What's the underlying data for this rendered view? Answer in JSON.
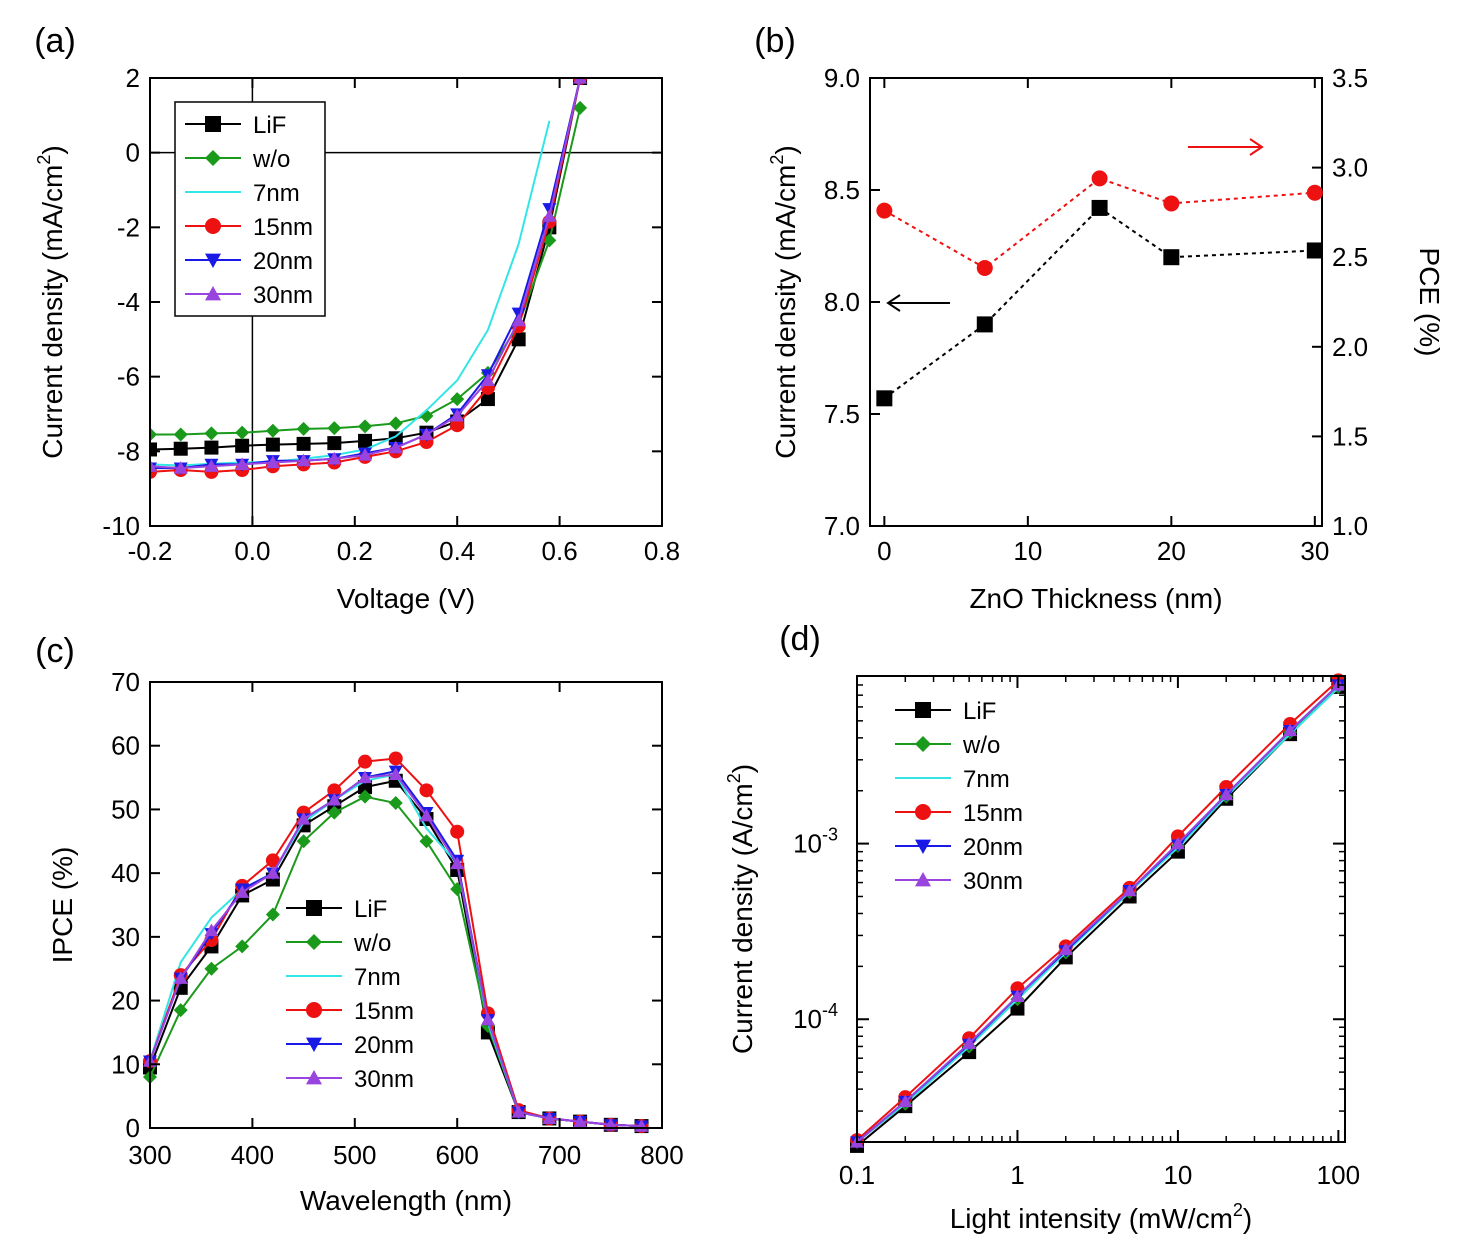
{
  "colors": {
    "LiF": "#000000",
    "w/o": "#1a9a1a",
    "7nm": "#33e5e5",
    "15nm": "#ee1111",
    "20nm": "#1a1ae6",
    "30nm": "#9a44e0"
  },
  "chart_data": [
    {
      "id": "a",
      "panel_label": "(a)",
      "type": "line",
      "xlabel": "Voltage (V)",
      "ylabel": "Current density (mA/cm",
      "ylabel_sup": "2",
      "ylabel_end": ")",
      "xlim": [
        -0.2,
        0.8
      ],
      "ylim": [
        -10,
        2
      ],
      "xticks": [
        -0.2,
        0.0,
        0.2,
        0.4,
        0.6,
        0.8
      ],
      "xtick_labels": [
        "-0.2",
        "0.0",
        "0.2",
        "0.4",
        "0.6",
        "0.8"
      ],
      "yticks": [
        -10,
        -8,
        -6,
        -4,
        -2,
        0,
        2
      ],
      "ytick_labels": [
        "-10",
        "-8",
        "-6",
        "-4",
        "-2",
        "0",
        "2"
      ],
      "legend_position": "top-left",
      "series": [
        {
          "name": "LiF",
          "marker": "square",
          "x": [
            -0.2,
            -0.14,
            -0.08,
            -0.02,
            0.04,
            0.1,
            0.16,
            0.22,
            0.28,
            0.34,
            0.4,
            0.46,
            0.52,
            0.58,
            0.64
          ],
          "y": [
            -7.95,
            -7.93,
            -7.9,
            -7.85,
            -7.82,
            -7.8,
            -7.78,
            -7.72,
            -7.65,
            -7.5,
            -7.2,
            -6.6,
            -5.0,
            -2.0,
            2.0
          ]
        },
        {
          "name": "w/o",
          "marker": "diamond",
          "x": [
            -0.2,
            -0.14,
            -0.08,
            -0.02,
            0.04,
            0.1,
            0.16,
            0.22,
            0.28,
            0.34,
            0.4,
            0.46,
            0.52,
            0.58,
            0.64
          ],
          "y": [
            -7.55,
            -7.55,
            -7.52,
            -7.5,
            -7.45,
            -7.4,
            -7.38,
            -7.33,
            -7.25,
            -7.05,
            -6.6,
            -5.9,
            -4.6,
            -2.35,
            1.2
          ]
        },
        {
          "name": "7nm",
          "marker": "bowtie",
          "x": [
            -0.2,
            -0.14,
            -0.08,
            -0.02,
            0.04,
            0.1,
            0.16,
            0.22,
            0.28,
            0.34,
            0.4,
            0.46,
            0.52,
            0.58
          ],
          "y": [
            -8.35,
            -8.38,
            -8.33,
            -8.3,
            -8.28,
            -8.2,
            -8.1,
            -7.95,
            -7.6,
            -6.9,
            -6.1,
            -4.75,
            -2.45,
            0.85
          ]
        },
        {
          "name": "15nm",
          "marker": "circle",
          "x": [
            -0.2,
            -0.14,
            -0.08,
            -0.02,
            0.04,
            0.1,
            0.16,
            0.22,
            0.28,
            0.34,
            0.4,
            0.46,
            0.52,
            0.58,
            0.64
          ],
          "y": [
            -8.55,
            -8.5,
            -8.55,
            -8.5,
            -8.4,
            -8.35,
            -8.3,
            -8.15,
            -8.0,
            -7.75,
            -7.3,
            -6.3,
            -4.65,
            -1.85,
            2.0
          ]
        },
        {
          "name": "20nm",
          "marker": "triangle-down",
          "x": [
            -0.2,
            -0.14,
            -0.08,
            -0.02,
            0.04,
            0.1,
            0.16,
            0.22,
            0.28,
            0.34,
            0.4,
            0.46,
            0.52,
            0.58,
            0.64
          ],
          "y": [
            -8.45,
            -8.45,
            -8.35,
            -8.35,
            -8.25,
            -8.25,
            -8.2,
            -8.05,
            -7.9,
            -7.55,
            -7.0,
            -5.95,
            -4.3,
            -1.5,
            2.0
          ]
        },
        {
          "name": "30nm",
          "marker": "triangle-up",
          "x": [
            -0.2,
            -0.14,
            -0.08,
            -0.02,
            0.04,
            0.1,
            0.16,
            0.22,
            0.28,
            0.34,
            0.4,
            0.46,
            0.52,
            0.58,
            0.64
          ],
          "y": [
            -8.4,
            -8.45,
            -8.4,
            -8.35,
            -8.3,
            -8.25,
            -8.2,
            -8.1,
            -7.9,
            -7.55,
            -7.05,
            -6.1,
            -4.5,
            -1.7,
            2.0
          ]
        }
      ]
    },
    {
      "id": "b",
      "panel_label": "(b)",
      "type": "scatter",
      "xlabel": "ZnO Thickness (nm)",
      "ylabel": "Current density (mA/cm",
      "ylabel_sup": "2",
      "ylabel_end": ")",
      "y2label": "PCE (%)",
      "xlim": [
        -1,
        30.5
      ],
      "ylim": [
        7.0,
        9.0
      ],
      "y2lim": [
        1.0,
        3.5
      ],
      "xticks": [
        0,
        10,
        20,
        30
      ],
      "xtick_labels": [
        "0",
        "10",
        "20",
        "30"
      ],
      "yticks": [
        7.0,
        7.5,
        8.0,
        8.5,
        9.0
      ],
      "ytick_labels": [
        "7.0",
        "7.5",
        "8.0",
        "8.5",
        "9.0"
      ],
      "y2ticks": [
        1.0,
        1.5,
        2.0,
        2.5,
        3.0,
        3.5
      ],
      "y2tick_labels": [
        "1.0",
        "1.5",
        "2.0",
        "2.5",
        "3.0",
        "3.5"
      ],
      "series": [
        {
          "name": "Current density",
          "axis": "left",
          "marker": "square",
          "color": "#000000",
          "x": [
            0,
            7,
            15,
            20,
            30
          ],
          "y": [
            7.57,
            7.9,
            8.42,
            8.2,
            8.23
          ]
        },
        {
          "name": "PCE",
          "axis": "right",
          "marker": "circle",
          "color": "#ee1111",
          "x": [
            0,
            7,
            15,
            20,
            30
          ],
          "y": [
            2.76,
            2.44,
            2.94,
            2.8,
            2.86
          ]
        }
      ],
      "annotations": [
        {
          "text": "arrow-left",
          "points_to": "left axis",
          "color": "#000000"
        },
        {
          "text": "arrow-right",
          "points_to": "right axis",
          "color": "#ee1111"
        }
      ]
    },
    {
      "id": "c",
      "panel_label": "(c)",
      "type": "line",
      "xlabel": "Wavelength (nm)",
      "ylabel": "IPCE (%)",
      "xlim": [
        300,
        800
      ],
      "ylim": [
        0,
        70
      ],
      "xticks": [
        300,
        400,
        500,
        600,
        700,
        800
      ],
      "xtick_labels": [
        "300",
        "400",
        "500",
        "600",
        "700",
        "800"
      ],
      "yticks": [
        0,
        10,
        20,
        30,
        40,
        50,
        60,
        70
      ],
      "ytick_labels": [
        "0",
        "10",
        "20",
        "30",
        "40",
        "50",
        "60",
        "70"
      ],
      "legend_position": "center",
      "x": [
        300,
        330,
        360,
        390,
        420,
        450,
        480,
        510,
        540,
        570,
        600,
        630,
        660,
        690,
        720,
        750,
        780
      ],
      "series": [
        {
          "name": "LiF",
          "marker": "square",
          "values": [
            9.5,
            22,
            28.5,
            36.5,
            39,
            47.5,
            50.5,
            53.5,
            54.5,
            48.5,
            40.5,
            15,
            2.5,
            1.5,
            1.0,
            0.5,
            0.3
          ]
        },
        {
          "name": "w/o",
          "marker": "diamond",
          "values": [
            8,
            18.5,
            25,
            28.5,
            33.5,
            45,
            49.5,
            52,
            51,
            45,
            37.5,
            16,
            2.5,
            1.5,
            1.0,
            0.5,
            0.3
          ]
        },
        {
          "name": "7nm",
          "marker": "bowtie",
          "values": [
            10.5,
            26,
            33,
            37.5,
            40,
            48,
            51.5,
            54.5,
            55.5,
            47,
            41.5,
            16.5,
            2.5,
            1.5,
            1.0,
            0.5,
            0.3
          ]
        },
        {
          "name": "15nm",
          "marker": "circle",
          "values": [
            10.5,
            24,
            29.5,
            38,
            42,
            49.5,
            53,
            57.5,
            58,
            53,
            46.5,
            18,
            2.8,
            1.5,
            1.0,
            0.5,
            0.3
          ]
        },
        {
          "name": "20nm",
          "marker": "triangle-down",
          "values": [
            10.5,
            23.5,
            30.5,
            37.5,
            40,
            48.5,
            51.5,
            55,
            56,
            49.5,
            42,
            17,
            2.5,
            1.5,
            1.0,
            0.5,
            0.3
          ]
        },
        {
          "name": "30nm",
          "marker": "triangle-up",
          "values": [
            10.5,
            23.5,
            31,
            37,
            40,
            48.5,
            51.5,
            55,
            55.5,
            49,
            41.5,
            17,
            2.5,
            1.5,
            1.0,
            0.5,
            0.3
          ]
        }
      ]
    },
    {
      "id": "d",
      "panel_label": "(d)",
      "type": "line",
      "scale": "log-log",
      "xlabel": "Light intensity (mW/cm",
      "xlabel_sup": "2",
      "xlabel_end": ")",
      "ylabel": "Current density (A/cm",
      "ylabel_sup": "2",
      "ylabel_end": ")",
      "xlim": [
        0.1,
        110
      ],
      "ylim": [
        2e-05,
        0.009
      ],
      "xticks": [
        0.1,
        1,
        10,
        100
      ],
      "xtick_labels": [
        "0.1",
        "1",
        "10",
        "100"
      ],
      "yticks": [
        0.0001,
        0.001
      ],
      "ytick_labels": [
        {
          "base": "10",
          "exp": "-4"
        },
        {
          "base": "10",
          "exp": "-3"
        }
      ],
      "legend_position": "top-left",
      "x": [
        0.1,
        0.2,
        0.5,
        1,
        2,
        5,
        10,
        20,
        50,
        100
      ],
      "series": [
        {
          "name": "LiF",
          "marker": "square",
          "values": [
            1.9e-05,
            3.2e-05,
            6.5e-05,
            0.000115,
            0.000225,
            0.0005,
            0.0009,
            0.0018,
            0.0042,
            0.0078
          ]
        },
        {
          "name": "w/o",
          "marker": "diamond",
          "values": [
            2e-05,
            3.3e-05,
            7e-05,
            0.00013,
            0.00024,
            0.00053,
            0.00097,
            0.00185,
            0.0043,
            0.0078
          ]
        },
        {
          "name": "7nm",
          "marker": "bowtie",
          "values": [
            2e-05,
            3.3e-05,
            7e-05,
            0.00013,
            0.00024,
            0.00053,
            0.00095,
            0.00185,
            0.0042,
            0.0077
          ]
        },
        {
          "name": "15nm",
          "marker": "circle",
          "values": [
            2.05e-05,
            3.6e-05,
            7.8e-05,
            0.00015,
            0.00026,
            0.00056,
            0.0011,
            0.0021,
            0.0048,
            0.0085
          ]
        },
        {
          "name": "20nm",
          "marker": "triangle-down",
          "values": [
            2e-05,
            3.4e-05,
            7.2e-05,
            0.000135,
            0.000245,
            0.00054,
            0.00098,
            0.0019,
            0.0044,
            0.008
          ]
        },
        {
          "name": "30nm",
          "marker": "triangle-up",
          "values": [
            2e-05,
            3.4e-05,
            7.3e-05,
            0.000135,
            0.00025,
            0.00054,
            0.001,
            0.0019,
            0.0044,
            0.008
          ]
        }
      ]
    }
  ]
}
